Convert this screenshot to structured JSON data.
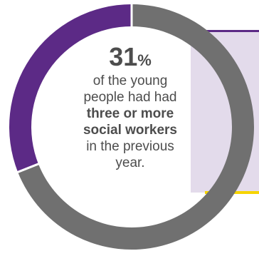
{
  "colors": {
    "highlight": "#5c2a86",
    "remainder": "#707070",
    "panel": "#e3dbeb",
    "accent": "#f6d400",
    "text": "#4d4d4d"
  },
  "chart_data": {
    "type": "pie",
    "variant": "donut",
    "slices": [
      {
        "label": "three or more social workers",
        "value": 31
      },
      {
        "label": "",
        "value": 69
      }
    ]
  },
  "callout": {
    "value": "31",
    "unit": "%",
    "line1": "of the young",
    "line2": "people had had",
    "line3_bold": "three or more",
    "line4_bold": "social workers",
    "line5": "in the previous",
    "line6": "year."
  }
}
